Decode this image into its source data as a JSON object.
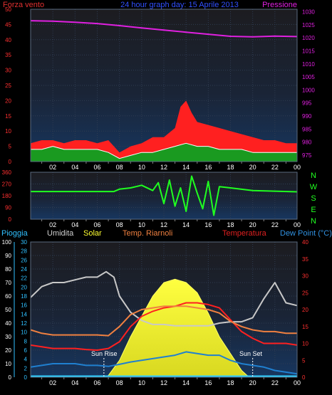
{
  "header": {
    "left_title": "Forza vento",
    "center_title": "24 hour graph day:  15 Aprile 2013",
    "right_title": "Pressione"
  },
  "colors": {
    "bg": "#000000",
    "plot_bg_top": "#1c1c20",
    "plot_bg_bottom": "#17365f",
    "wind_gust": "#ff2020",
    "wind_avg": "#1a9a20",
    "pressure": "#e020e0",
    "direction": "#20ff20",
    "temperature": "#ff2020",
    "humidity": "#c8c8c8",
    "feels_like": "#f08040",
    "dew_point": "#2080d0",
    "solar": "#ffff30",
    "rain": "#30d0ff"
  },
  "chart_data": [
    {
      "type": "line",
      "panel": "wind-pressure",
      "x_ticks": [
        "02",
        "04",
        "06",
        "08",
        "10",
        "12",
        "14",
        "16",
        "18",
        "20",
        "22",
        "00"
      ],
      "left_axis": {
        "title": "Forza vento",
        "ticks": [
          "0",
          "5",
          "10",
          "15",
          "20",
          "25",
          "30",
          "35",
          "40",
          "45",
          "50"
        ],
        "ylim": [
          0,
          50
        ]
      },
      "right_axis": {
        "title": "Pressione",
        "ticks": [
          "975",
          "980",
          "985",
          "990",
          "995",
          "1000",
          "1005",
          "1010",
          "1015",
          "1020",
          "1025",
          "1030"
        ],
        "ylim": [
          972.5,
          1031
        ]
      },
      "series": [
        {
          "name": "Pressione",
          "axis": "right",
          "x": [
            0,
            2,
            4,
            6,
            8,
            10,
            12,
            14,
            16,
            18,
            20,
            22,
            24
          ],
          "values": [
            1026.6,
            1026.4,
            1026.0,
            1025.5,
            1024.7,
            1023.8,
            1023.0,
            1022.2,
            1021.4,
            1020.6,
            1020.4,
            1020.7,
            1020.5
          ]
        },
        {
          "axis": "left",
          "x": [
            0,
            1,
            2,
            3,
            4,
            5,
            6,
            7,
            8,
            9,
            10,
            11,
            12,
            13,
            13.5,
            14,
            14.5,
            15,
            16,
            17,
            18,
            19,
            20,
            21,
            22,
            23,
            24
          ],
          "values": [
            6,
            7,
            7,
            6,
            7,
            7,
            6,
            7,
            3,
            5,
            6,
            8,
            8,
            11,
            18,
            20,
            16,
            13,
            12,
            11,
            10,
            9,
            8,
            7,
            7,
            6,
            6
          ]
        },
        {
          "axis": "left",
          "x": [
            0,
            1,
            2,
            3,
            4,
            5,
            6,
            7,
            8,
            9,
            10,
            11,
            12,
            13,
            14,
            15,
            16,
            17,
            18,
            19,
            20,
            21,
            22,
            23,
            24
          ],
          "values": [
            4,
            4,
            5,
            4,
            4,
            4,
            4,
            3,
            1,
            2,
            3,
            3,
            4,
            5,
            6,
            5,
            5,
            4,
            4,
            4,
            3,
            3,
            3,
            3,
            3
          ]
        }
      ]
    },
    {
      "type": "line",
      "panel": "wind-direction",
      "x_ticks": [
        "02",
        "04",
        "06",
        "08",
        "10",
        "12",
        "14",
        "16",
        "18",
        "20",
        "22",
        "00"
      ],
      "left_axis": {
        "ticks": [
          "0",
          "90",
          "180",
          "270",
          "360"
        ],
        "ylim": [
          0,
          360
        ]
      },
      "right_labels": [
        "N",
        "W",
        "S",
        "E",
        "N"
      ],
      "series": [
        {
          "axis": "left",
          "x": [
            0,
            2,
            4,
            6,
            7.5,
            8,
            9,
            10,
            11,
            11.5,
            12,
            12.5,
            13,
            13.5,
            14,
            14.5,
            15,
            15.5,
            16,
            16.5,
            17,
            18,
            20,
            22,
            24
          ],
          "values": [
            212,
            212,
            212,
            212,
            212,
            230,
            240,
            260,
            220,
            280,
            120,
            300,
            100,
            240,
            60,
            330,
            200,
            80,
            290,
            30,
            250,
            240,
            220,
            215,
            210
          ]
        }
      ]
    },
    {
      "type": "line",
      "panel": "temperature-humidity-solar",
      "legend": [
        "Pioggia",
        "Umidita",
        "Solar",
        "Temp. Riarnoli",
        "Temperatura",
        "Dew Point (°C)"
      ],
      "x_ticks": [
        "02",
        "04",
        "06",
        "08",
        "10",
        "12",
        "14",
        "16",
        "18",
        "20",
        "22",
        "00"
      ],
      "left_axis_rain": {
        "title": "Pioggia",
        "ticks": [
          "0",
          "10",
          "20",
          "30",
          "40",
          "50",
          "60",
          "70",
          "80",
          "90",
          "100"
        ],
        "ylim": [
          0,
          100
        ]
      },
      "left_axis_2": {
        "ticks": [
          "0",
          "2",
          "4",
          "6",
          "8",
          "10",
          "12",
          "14",
          "16",
          "18",
          "20",
          "22",
          "24",
          "26",
          "28",
          "30"
        ],
        "ylim": [
          0,
          30
        ]
      },
      "right_axis": {
        "title": "Dew Point (°C)",
        "ticks": [
          "0",
          "5",
          "10",
          "15",
          "20",
          "25",
          "30",
          "35",
          "40"
        ],
        "ylim": [
          0,
          40
        ]
      },
      "annotations": [
        {
          "text": "Sun Rise",
          "x": 6.6
        },
        {
          "text": "Sun Set",
          "x": 20.0
        }
      ],
      "series": [
        {
          "name": "Umidita",
          "axis": "left_rain",
          "x": [
            0,
            1,
            2,
            3,
            4,
            5,
            6,
            6.8,
            7.5,
            8,
            9,
            10,
            11,
            12,
            13,
            14,
            15,
            16,
            17,
            18,
            19,
            20,
            21,
            22,
            23,
            24
          ],
          "values": [
            59,
            67,
            70,
            70,
            72,
            74,
            74,
            78,
            74,
            60,
            48,
            42,
            39,
            39,
            38,
            38,
            38,
            38,
            40,
            41,
            41,
            44,
            58,
            70,
            55,
            53
          ]
        },
        {
          "name": "Temperatura",
          "axis": "right",
          "x": [
            0,
            1,
            2,
            3,
            4,
            5,
            6,
            7,
            8,
            9,
            10,
            11,
            12,
            13,
            14,
            15,
            16,
            17,
            18,
            19,
            20,
            21,
            22,
            23,
            24
          ],
          "values": [
            9.5,
            9.0,
            8.5,
            8.5,
            8.5,
            8.2,
            8.0,
            8.5,
            10.5,
            15.0,
            18.0,
            19.5,
            20.5,
            21.0,
            22.0,
            22.0,
            21.5,
            20.5,
            17.0,
            13.5,
            11.5,
            10.0,
            10.0,
            10.0,
            9.5
          ]
        },
        {
          "name": "Temp. Riarnoli",
          "axis": "right",
          "x": [
            0,
            1,
            2,
            3,
            4,
            5,
            6,
            7,
            8,
            9,
            10,
            11,
            12,
            13,
            14,
            15,
            16,
            17,
            18,
            19,
            20,
            21,
            22,
            23,
            24
          ],
          "values": [
            14.0,
            13.0,
            12.5,
            12.5,
            12.5,
            12.5,
            12.5,
            12.3,
            15.0,
            18.5,
            20.0,
            20.5,
            21.0,
            21.0,
            21.0,
            20.5,
            20.0,
            19.0,
            16.5,
            15.0,
            14.0,
            13.5,
            13.5,
            13.0,
            13.0
          ]
        },
        {
          "name": "Dew Point (°C)",
          "axis": "right",
          "x": [
            0,
            1,
            2,
            3,
            4,
            5,
            6,
            7,
            8,
            9,
            10,
            11,
            12,
            13,
            14,
            15,
            16,
            17,
            18,
            19,
            20,
            21,
            22,
            23,
            24
          ],
          "values": [
            3.0,
            3.5,
            4.0,
            4.0,
            4.0,
            3.5,
            3.5,
            3.2,
            3.8,
            4.5,
            5.0,
            5.5,
            6.0,
            6.5,
            7.5,
            7.0,
            6.5,
            6.5,
            5.0,
            4.0,
            3.5,
            3.0,
            2.0,
            1.5,
            1.0
          ]
        },
        {
          "name": "Solar",
          "axis": "right",
          "x": [
            6.6,
            7,
            8,
            9,
            10,
            11,
            12,
            13,
            14,
            15,
            16,
            17,
            18,
            19,
            19.5,
            20
          ],
          "values": [
            0,
            0.5,
            5,
            12,
            18,
            24,
            28,
            29,
            28,
            25,
            19,
            12,
            7,
            2,
            0.5,
            0
          ]
        },
        {
          "name": "Pioggia",
          "axis": "left_rain",
          "x": [
            0,
            24
          ],
          "values": [
            0.5,
            0.5
          ]
        }
      ]
    }
  ]
}
